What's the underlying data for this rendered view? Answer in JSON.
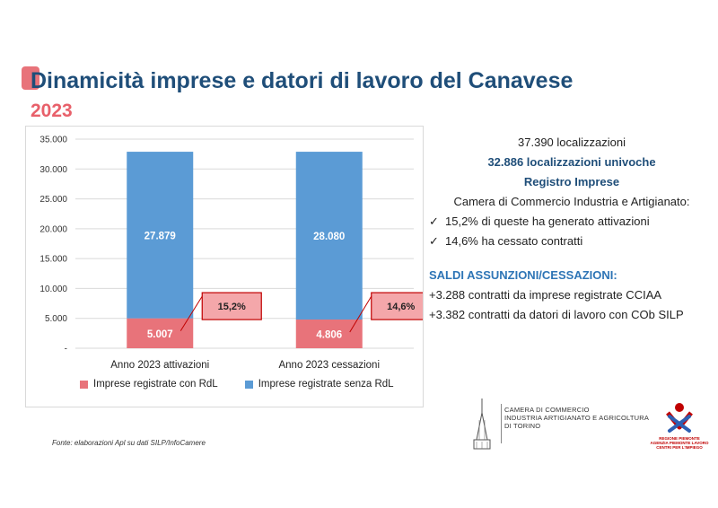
{
  "header": {
    "title": "Dinamicità imprese e datori di lavoro del Canavese",
    "year": "2023"
  },
  "colors": {
    "accent": "#e8737a",
    "title_blue": "#1f4e79",
    "series_rdl": "#e8737a",
    "series_senza_rdl": "#5b9bd5",
    "callout_fill": "#f4a7aa",
    "callout_border": "#c00000"
  },
  "chart_data": {
    "type": "bar",
    "stacked": true,
    "categories": [
      "Anno 2023 attivazioni",
      "Anno 2023 cessazioni"
    ],
    "series": [
      {
        "name": "Imprese registrate con RdL",
        "values": [
          5007,
          4806
        ],
        "labels": [
          "5.007",
          "4.806"
        ]
      },
      {
        "name": "Imprese registrate senza RdL",
        "values": [
          27879,
          28080
        ],
        "labels": [
          "27.879",
          "28.080"
        ]
      }
    ],
    "callouts": [
      "15,2%",
      "14,6%"
    ],
    "yticks": [
      "-",
      "5.000",
      "10.000",
      "15.000",
      "20.000",
      "25.000",
      "30.000",
      "35.000"
    ],
    "ylim": [
      0,
      35000
    ],
    "grid": true,
    "legend": "bottom"
  },
  "source": "Fonte: elaborazioni Apl su dati SILP/InfoCamere",
  "info": {
    "line1": "37.390 localizzazioni",
    "line2": "32.886 localizzazioni univoche",
    "line3": "Registro Imprese",
    "line4": "Camera di Commercio Industria e Artigianato:",
    "check1": "15,2% di queste ha generato attivazioni",
    "check2": "14,6% ha cessato contratti",
    "saldi_title": "SALDI ASSUNZIONI/CESSAZIONI:",
    "saldo1": "+3.288 contratti da imprese registrate CCIAA",
    "saldo2": "+3.382 contratti da datori di lavoro con COb  SILP",
    "check_symbol": "✓"
  },
  "logos": {
    "cciaa_line1": "CAMERA DI COMMERCIO",
    "cciaa_line2": "INDUSTRIA ARTIGIANATO E AGRICOLTURA",
    "cciaa_line3": "DI TORINO",
    "regione_line1": "REGIONE PIEMONTE",
    "regione_line2": "AGENZIA PIEMONTE LAVORO",
    "regione_line3": "CENTRI PER L'IMPIEGO"
  }
}
